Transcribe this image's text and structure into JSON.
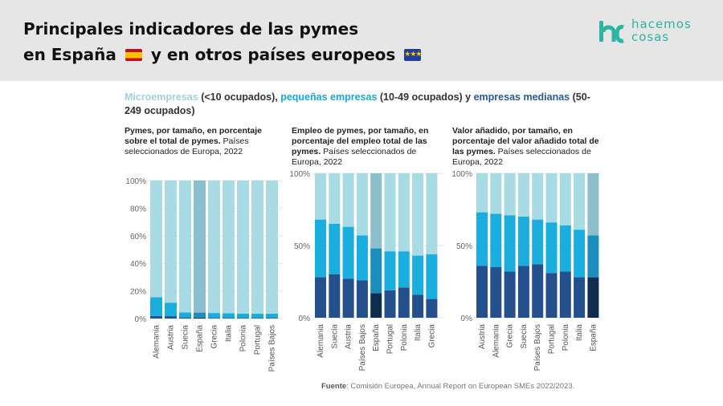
{
  "header": {
    "title_line1": "Principales indicadores de las pymes",
    "title_line2_a": "en España",
    "title_line2_b": "y en otros países europeos"
  },
  "logo": {
    "line1": "hacemos",
    "line2": "cosas",
    "color": "#2bb5a3"
  },
  "legend": {
    "micro": "Microempresas",
    "micro_range": "(<10 ocupados),",
    "small": "pequeñas empresas",
    "small_range": "(10-49 ocupados) y",
    "medium": "empresas medianas",
    "medium_range": "(50-249 ocupados)"
  },
  "colors": {
    "micro": "#a8dbe3",
    "small": "#1aaedf",
    "medium": "#24508c",
    "spain_micro": "#8bbfcd",
    "spain_small": "#1a8fbe",
    "spain_medium": "#0f2d4f"
  },
  "panel_titles": [
    {
      "bold": "Pymes, por tamaño, en porcentaje sobre el total de pymes.",
      "normal": "Países seleccionados de Europa, 2022"
    },
    {
      "bold": "Empleo de pymes, por tamaño, en porcentaje del empleo total de las pymes.",
      "normal": "Países seleccionados de Europa, 2022"
    },
    {
      "bold": "Valor añadido, por tamaño, en porcentaje del valor añadido total de las pymes.",
      "normal": "Países seleccionados de Europa, 2022"
    }
  ],
  "chart_data": [
    {
      "type": "bar",
      "stacked": true,
      "title": "Pymes, por tamaño, en porcentaje sobre el total de pymes. Países seleccionados de Europa, 2022",
      "categories": [
        "Alemania",
        "Austria",
        "Suecia",
        "España",
        "Grecia",
        "Italia",
        "Polonia",
        "Portugal",
        "Países Bajos"
      ],
      "highlight": "España",
      "y_ticks": [
        "100%",
        "80%",
        "60%",
        "40%",
        "20%",
        "0%"
      ],
      "ylim": [
        0,
        100
      ],
      "series": [
        {
          "name": "Microempresas",
          "values": [
            84.6,
            88.5,
            95.6,
            95.7,
            96.0,
            96.1,
            96.5,
            96.5,
            96.5
          ]
        },
        {
          "name": "pequeñas empresas",
          "values": [
            13.5,
            9.8,
            3.6,
            3.6,
            3.5,
            3.4,
            3.0,
            3.0,
            3.0
          ]
        },
        {
          "name": "empresas medianas",
          "values": [
            1.9,
            1.7,
            0.8,
            0.7,
            0.5,
            0.5,
            0.5,
            0.5,
            0.5
          ]
        }
      ]
    },
    {
      "type": "bar",
      "stacked": true,
      "title": "Empleo de pymes, por tamaño, en porcentaje del empleo total de las pymes. Países seleccionados de Europa, 2022",
      "categories": [
        "Alemania",
        "Suecia",
        "Austria",
        "Países Bajos",
        "España",
        "Portugal",
        "Polonia",
        "Italia",
        "Grecia"
      ],
      "highlight": "España",
      "y_ticks": [
        "100%",
        "50%",
        "0%"
      ],
      "ylim": [
        0,
        100
      ],
      "series": [
        {
          "name": "Microempresas",
          "values": [
            32,
            35,
            37,
            43,
            52,
            54,
            54,
            57,
            56
          ]
        },
        {
          "name": "pequeñas empresas",
          "values": [
            40,
            35,
            36,
            31,
            31,
            27,
            25,
            27,
            31
          ]
        },
        {
          "name": "empresas medianas",
          "values": [
            28,
            30,
            27,
            26,
            17,
            19,
            21,
            16,
            13
          ]
        }
      ]
    },
    {
      "type": "bar",
      "stacked": true,
      "title": "Valor añadido, por tamaño, en porcentaje del valor añadido total de las pymes. Países seleccionados de Europa, 2022",
      "categories": [
        "Austria",
        "Alemania",
        "Grecia",
        "Suecia",
        "Países Bajos",
        "Portugal",
        "Polonia",
        "Italia",
        "España"
      ],
      "highlight": "España",
      "y_ticks": [
        "100%",
        "50%",
        "0%"
      ],
      "ylim": [
        0,
        100
      ],
      "series": [
        {
          "name": "Microempresas",
          "values": [
            27,
            28,
            29,
            30,
            32,
            34,
            36,
            39,
            43
          ]
        },
        {
          "name": "pequeñas empresas",
          "values": [
            37,
            37,
            39,
            34,
            31,
            35,
            32,
            33,
            29
          ]
        },
        {
          "name": "empresas medianas",
          "values": [
            36,
            35,
            32,
            36,
            37,
            31,
            32,
            28,
            28
          ]
        }
      ]
    }
  ],
  "source": {
    "label": "Fuente",
    "text": ": Comisión Europea, Annual Report on European SMEs 2022/2023."
  }
}
